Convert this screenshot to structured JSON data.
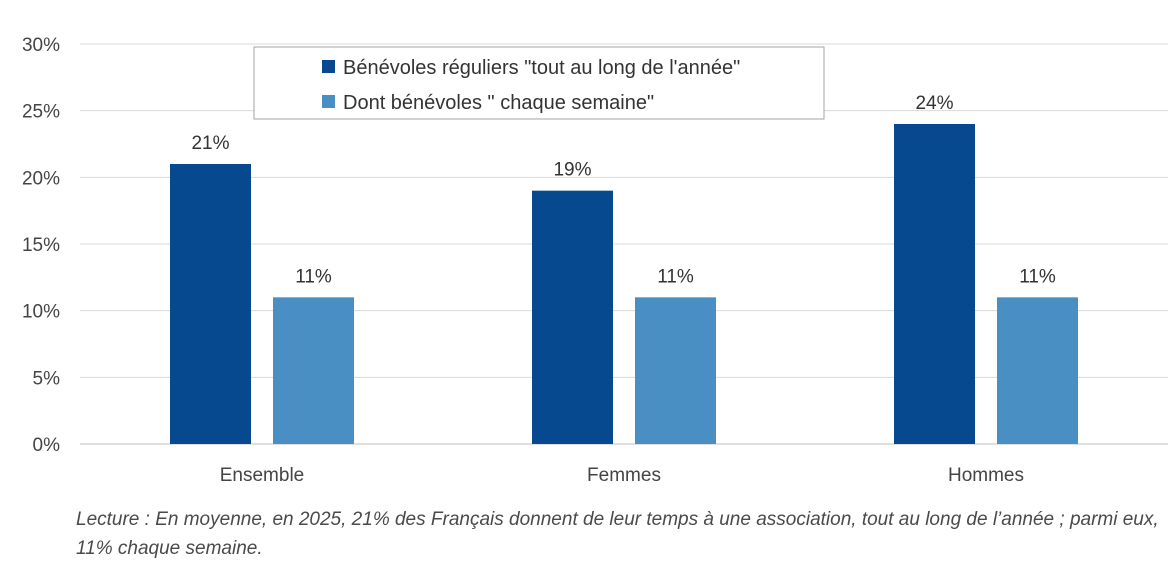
{
  "chart_data": {
    "type": "bar",
    "categories": [
      "Ensemble",
      "Femmes",
      "Hommes"
    ],
    "series": [
      {
        "name": "Bénévoles réguliers \"tout au long de l'année\"",
        "values": [
          21,
          19,
          24
        ],
        "color": "#06498f"
      },
      {
        "name": "Dont bénévoles \" chaque semaine\"",
        "values": [
          11,
          11,
          11
        ],
        "color": "#4a8fc4"
      }
    ],
    "data_labels": [
      [
        "21%",
        "19%",
        "24%"
      ],
      [
        "11%",
        "11%",
        "11%"
      ]
    ],
    "yticks": [
      "0%",
      "5%",
      "10%",
      "15%",
      "20%",
      "25%",
      "30%"
    ],
    "ylim": [
      0,
      30
    ],
    "grid": true,
    "legend_position": "top-center"
  },
  "caption": "Lecture : En moyenne, en 2025, 21% des Français donnent de leur temps à une association, tout au long de l’année ; parmi eux, 11% chaque semaine."
}
